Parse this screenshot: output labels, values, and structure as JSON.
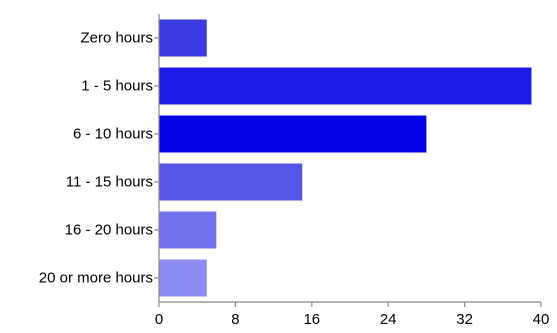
{
  "chart_data": {
    "type": "bar",
    "orientation": "horizontal",
    "title": "",
    "xlabel": "",
    "ylabel": "",
    "categories": [
      "Zero hours",
      "1 - 5 hours",
      "6 - 10 hours",
      "11 - 15 hours",
      "16 - 20 hours",
      "20 or more hours"
    ],
    "values": [
      5,
      39,
      28,
      15,
      6,
      5
    ],
    "colors": [
      "#3a3ae3",
      "#1c1ce6",
      "#0303e6",
      "#5656e6",
      "#7373ee",
      "#8c8cf2"
    ],
    "xlim": [
      0,
      40
    ],
    "xticks": [
      0,
      8,
      16,
      24,
      32,
      40
    ],
    "xtick_labels": [
      "0",
      "8",
      "16",
      "24",
      "32",
      "40"
    ],
    "grid": false,
    "legend": "none"
  }
}
